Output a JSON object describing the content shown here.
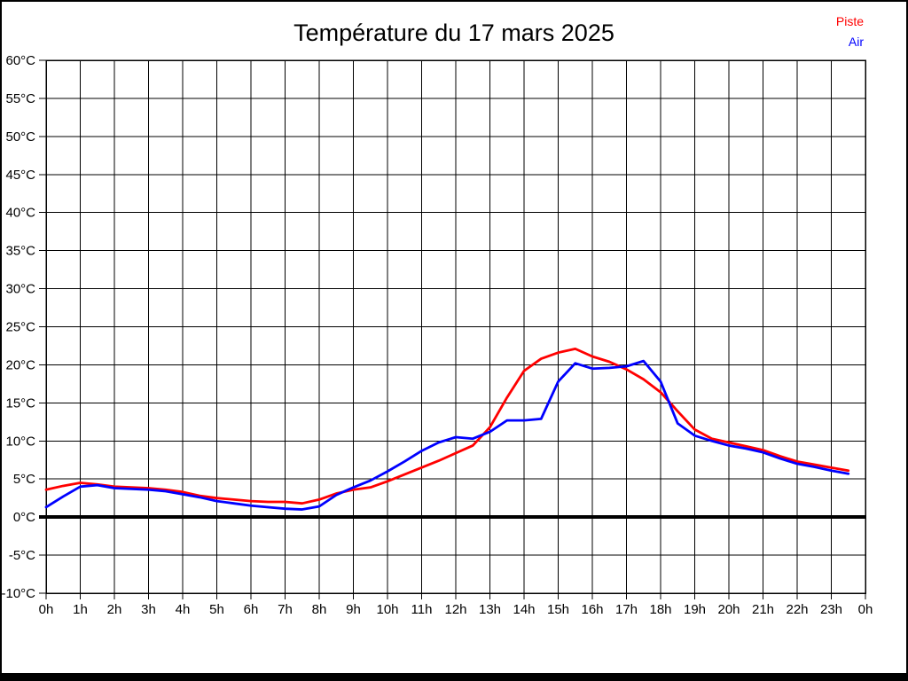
{
  "title": "Température du 17 mars 2025",
  "legend": [
    {
      "label": "Piste",
      "color": "#ff0000"
    },
    {
      "label": "Air",
      "color": "#0000ff"
    }
  ],
  "chart_data": {
    "type": "line",
    "title": "Température du 17 mars 2025",
    "xlabel": "",
    "ylabel": "",
    "xlim": [
      0,
      24
    ],
    "ylim": [
      -10,
      60
    ],
    "grid": true,
    "zero_line_bold": true,
    "legend_position": "top-right",
    "x_unit": "hours",
    "x_start": 0,
    "x_step": 0.5,
    "x_ticks": [
      0,
      1,
      2,
      3,
      4,
      5,
      6,
      7,
      8,
      9,
      10,
      11,
      12,
      13,
      14,
      15,
      16,
      17,
      18,
      19,
      20,
      21,
      22,
      23,
      24
    ],
    "x_tick_labels": [
      "0h",
      "1h",
      "2h",
      "3h",
      "4h",
      "5h",
      "6h",
      "7h",
      "8h",
      "9h",
      "10h",
      "11h",
      "12h",
      "13h",
      "14h",
      "15h",
      "16h",
      "17h",
      "18h",
      "19h",
      "20h",
      "21h",
      "22h",
      "23h",
      "0h"
    ],
    "y_ticks": [
      60,
      55,
      50,
      45,
      40,
      35,
      30,
      25,
      20,
      15,
      10,
      5,
      0,
      -5,
      -10
    ],
    "y_tick_labels": [
      "60°C",
      "55°C",
      "50°C",
      "45°C",
      "40°C",
      "35°C",
      "30°C",
      "25°C",
      "20°C",
      "15°C",
      "10°C",
      "5°C",
      "0°C",
      "-5°C",
      "-10°C"
    ],
    "series": [
      {
        "name": "Piste",
        "color": "#ff0000",
        "values": [
          3.6,
          4.1,
          4.5,
          4.3,
          4.0,
          3.9,
          3.8,
          3.6,
          3.3,
          2.8,
          2.5,
          2.3,
          2.1,
          2.0,
          2.0,
          1.8,
          2.3,
          3.1,
          3.6,
          3.9,
          4.7,
          5.6,
          6.5,
          7.4,
          8.4,
          9.4,
          11.8,
          15.7,
          19.2,
          20.8,
          21.6,
          22.1,
          21.1,
          20.4,
          19.4,
          18.1,
          16.4,
          13.9,
          11.5,
          10.3,
          9.8,
          9.3,
          8.8,
          8.0,
          7.3,
          6.9,
          6.5,
          6.1
        ]
      },
      {
        "name": "Air",
        "color": "#0000ff",
        "values": [
          1.3,
          2.7,
          4.0,
          4.2,
          3.8,
          3.7,
          3.6,
          3.4,
          3.0,
          2.6,
          2.1,
          1.8,
          1.5,
          1.3,
          1.1,
          1.0,
          1.4,
          2.9,
          3.9,
          4.8,
          6.0,
          7.3,
          8.7,
          9.8,
          10.5,
          10.3,
          11.2,
          12.7,
          12.7,
          12.9,
          17.8,
          20.2,
          19.5,
          19.6,
          19.8,
          20.5,
          17.8,
          12.3,
          10.7,
          10.0,
          9.4,
          9.0,
          8.5,
          7.7,
          7.0,
          6.6,
          6.1,
          5.7
        ]
      }
    ]
  }
}
